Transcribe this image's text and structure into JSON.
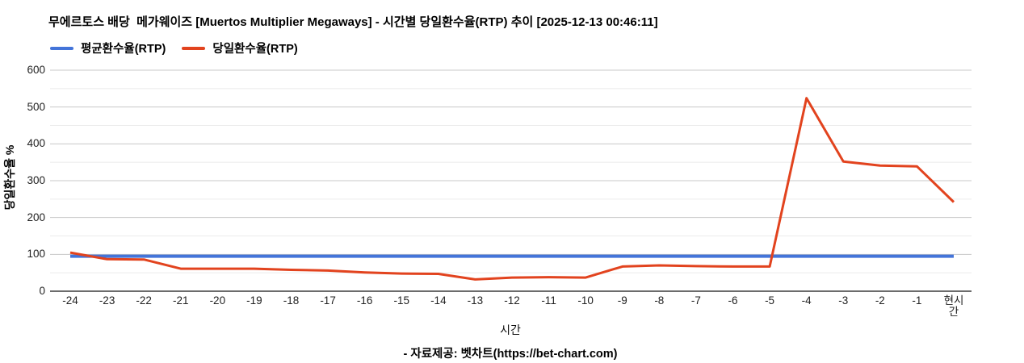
{
  "header": {
    "title": "무에르토스 배당  메가웨이즈 [Muertos Multiplier Megaways] - 시간별 당일환수율(RTP) 추이 [2025-12-13 00:46:11]"
  },
  "legend": {
    "items": [
      {
        "label": "평균환수율(RTP)",
        "color": "#4374d9"
      },
      {
        "label": "당일환수율(RTP)",
        "color": "#e2431e"
      }
    ]
  },
  "axes": {
    "x_title": "시간",
    "y_title": "당일환수율 %"
  },
  "footer": {
    "source": "- 자료제공: 벳차트(https://bet-chart.com)"
  },
  "colors": {
    "average_line": "#4374d9",
    "daily_line": "#e2431e",
    "grid_major": "#c8c8c8",
    "grid_minor": "#ebebeb",
    "axis_baseline": "#3c3c3c",
    "tick_text": "#222222"
  },
  "chart_data": {
    "type": "line",
    "title": "무에르토스 배당  메가웨이즈 [Muertos Multiplier Megaways] - 시간별 당일환수율(RTP) 추이 [2025-12-13 00:46:11]",
    "xlabel": "시간",
    "ylabel": "당일환수율 %",
    "categories": [
      "-24",
      "-23",
      "-22",
      "-21",
      "-20",
      "-19",
      "-18",
      "-17",
      "-16",
      "-15",
      "-14",
      "-13",
      "-12",
      "-11",
      "-10",
      "-9",
      "-8",
      "-7",
      "-6",
      "-5",
      "-4",
      "-3",
      "-2",
      "-1",
      "현시간"
    ],
    "series": [
      {
        "name": "평균환수율(RTP)",
        "color": "#4374d9",
        "values": [
          95,
          95,
          95,
          95,
          95,
          95,
          95,
          95,
          95,
          95,
          95,
          95,
          95,
          95,
          95,
          95,
          95,
          95,
          95,
          95,
          95,
          95,
          95,
          95,
          95
        ]
      },
      {
        "name": "당일환수율(RTP)",
        "color": "#e2431e",
        "values": [
          105,
          87,
          86,
          61,
          61,
          61,
          58,
          56,
          51,
          48,
          47,
          32,
          37,
          38,
          37,
          67,
          70,
          68,
          67,
          67,
          524,
          352,
          341,
          339,
          242
        ]
      }
    ],
    "ylim": [
      0,
      600
    ],
    "yticks": [
      0,
      100,
      200,
      300,
      400,
      500,
      600
    ],
    "grid": "horizontal",
    "grid_minor_step": 50,
    "legend_position": "top-left"
  }
}
